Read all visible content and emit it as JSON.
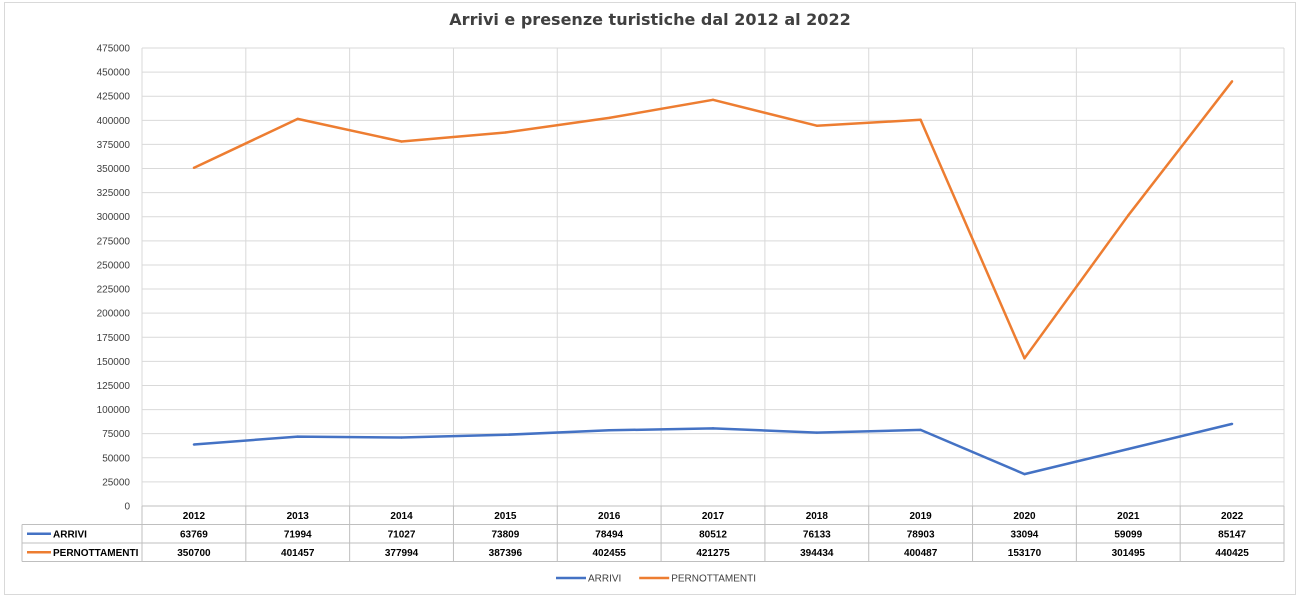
{
  "chart_data": {
    "type": "line",
    "title": "Arrivi e presenze turistiche dal 2012 al 2022",
    "categories": [
      "2012",
      "2013",
      "2014",
      "2015",
      "2016",
      "2017",
      "2018",
      "2019",
      "2020",
      "2021",
      "2022"
    ],
    "series": [
      {
        "name": "ARRIVI",
        "color": "#4472c4",
        "values": [
          63769,
          71994,
          71027,
          73809,
          78494,
          80512,
          76133,
          78903,
          33094,
          59099,
          85147
        ]
      },
      {
        "name": "PERNOTTAMENTI",
        "color": "#ed7d31",
        "values": [
          350700,
          401457,
          377994,
          387396,
          402455,
          421275,
          394434,
          400487,
          153170,
          301495,
          440425
        ]
      }
    ],
    "ylim": [
      0,
      475000
    ],
    "ytick_step": 25000,
    "grid": true,
    "legend_position": "bottom",
    "data_table": true,
    "xlabel": "",
    "ylabel": ""
  }
}
